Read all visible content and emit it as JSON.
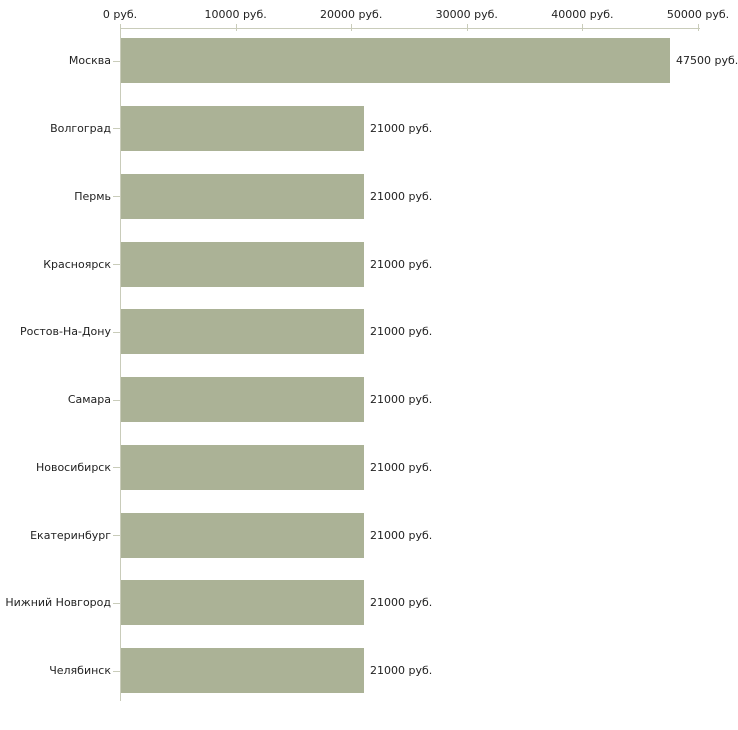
{
  "chart_data": {
    "type": "bar",
    "orientation": "horizontal",
    "title": "",
    "categories": [
      "Москва",
      "Волгоград",
      "Пермь",
      "Красноярск",
      "Ростов-На-Дону",
      "Самара",
      "Новосибирск",
      "Екатеринбург",
      "Нижний Новгород",
      "Челябинск"
    ],
    "values": [
      47500,
      21000,
      21000,
      21000,
      21000,
      21000,
      21000,
      21000,
      21000,
      21000
    ],
    "value_labels": [
      "47500 руб.",
      "21000 руб.",
      "21000 руб.",
      "21000 руб.",
      "21000 руб.",
      "21000 руб.",
      "21000 руб.",
      "21000 руб.",
      "21000 руб.",
      "21000 руб."
    ],
    "unit": "руб.",
    "x_ticks": [
      0,
      10000,
      20000,
      30000,
      40000,
      50000
    ],
    "x_tick_labels": [
      "0 руб.",
      "10000 руб.",
      "20000 руб.",
      "30000 руб.",
      "40000 руб.",
      "50000 руб."
    ],
    "xlim": [
      0,
      50000
    ],
    "grid": false,
    "legend": false,
    "axis_position": "top",
    "colors": {
      "bar": "#abb296",
      "axis": "#c9ccba",
      "text": "#222222",
      "background": "#ffffff"
    }
  }
}
